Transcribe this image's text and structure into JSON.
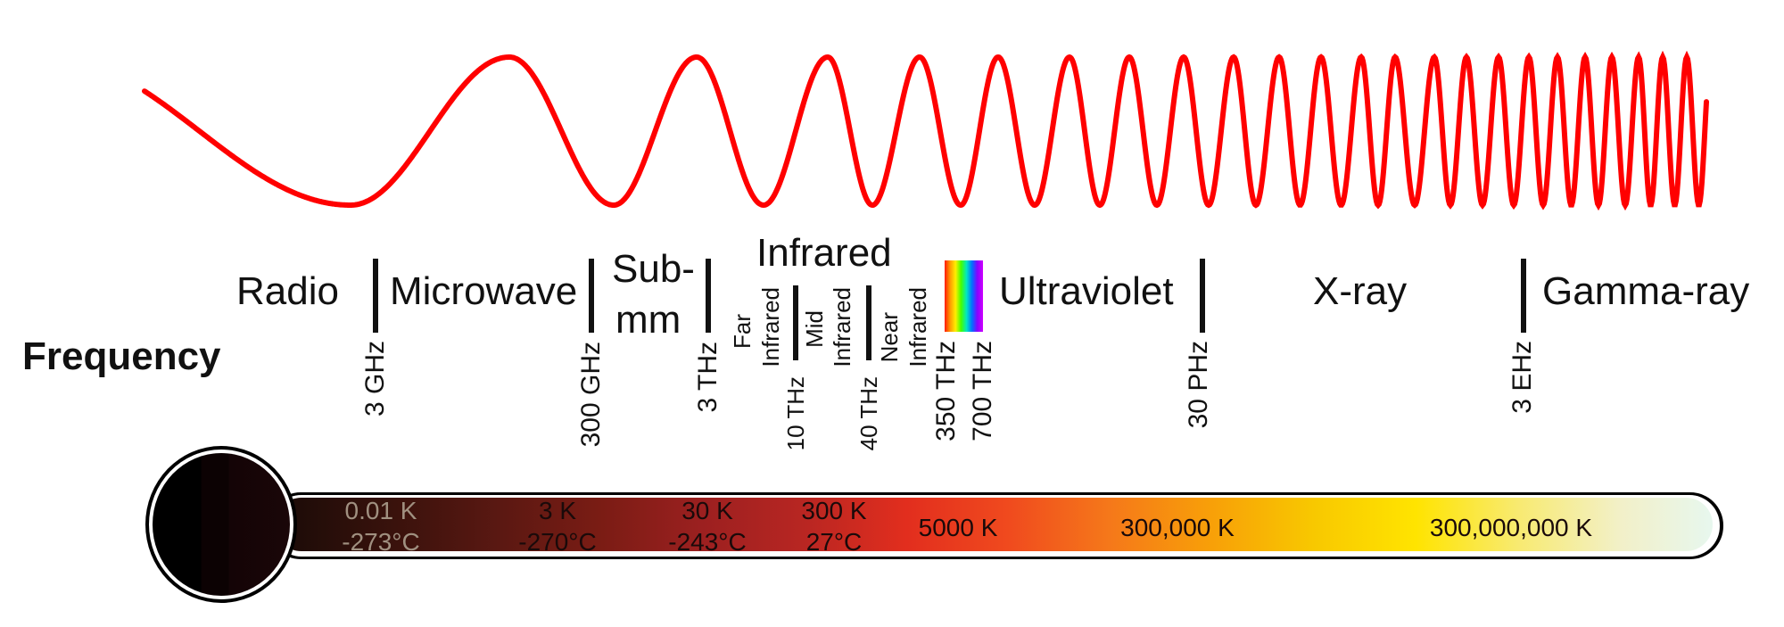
{
  "colors": {
    "wave": "#ff0000",
    "text": "#111111",
    "cold_label": "#a09080",
    "tube_gradient": [
      "#1e0c08",
      "#3a120c",
      "#5a1812",
      "#7a1c14",
      "#9c2020",
      "#b82622",
      "#e22e1e",
      "#f04a1e",
      "#f5781a",
      "#f8a008",
      "#f8c800",
      "#ffe400",
      "#f8ea70",
      "#f2f0c8",
      "#e6f8f2"
    ]
  },
  "frequency_title": "Frequency",
  "bands": {
    "radio": "Radio",
    "microwave": "Microwave",
    "submm_line1": "Sub-",
    "submm_line2": "mm",
    "infrared": "Infrared",
    "far_infrared": [
      "Far",
      "Infrared"
    ],
    "mid_infrared": [
      "Mid",
      "Infrared"
    ],
    "near_infrared": [
      "Near",
      "Infrared"
    ],
    "ultraviolet": "Ultraviolet",
    "xray": "X-ray",
    "gamma": "Gamma-ray"
  },
  "frequencies": {
    "f1": "3 GHz",
    "f2": "300 GHz",
    "f3": "3 THz",
    "f4": "10 THz",
    "f5": "40 THz",
    "f6": "350 THz",
    "f7": "700 THz",
    "f8": "30 PHz",
    "f9": "3 EHz"
  },
  "temperatures": [
    {
      "kelvin": "0.01 K",
      "celsius": "-273°C"
    },
    {
      "kelvin": "3 K",
      "celsius": "-270°C"
    },
    {
      "kelvin": "30 K",
      "celsius": "-243°C"
    },
    {
      "kelvin": "300 K",
      "celsius": "27°C"
    },
    {
      "kelvin": "5000 K"
    },
    {
      "kelvin": "300,000 K"
    },
    {
      "kelvin": "300,000,000 K"
    }
  ]
}
